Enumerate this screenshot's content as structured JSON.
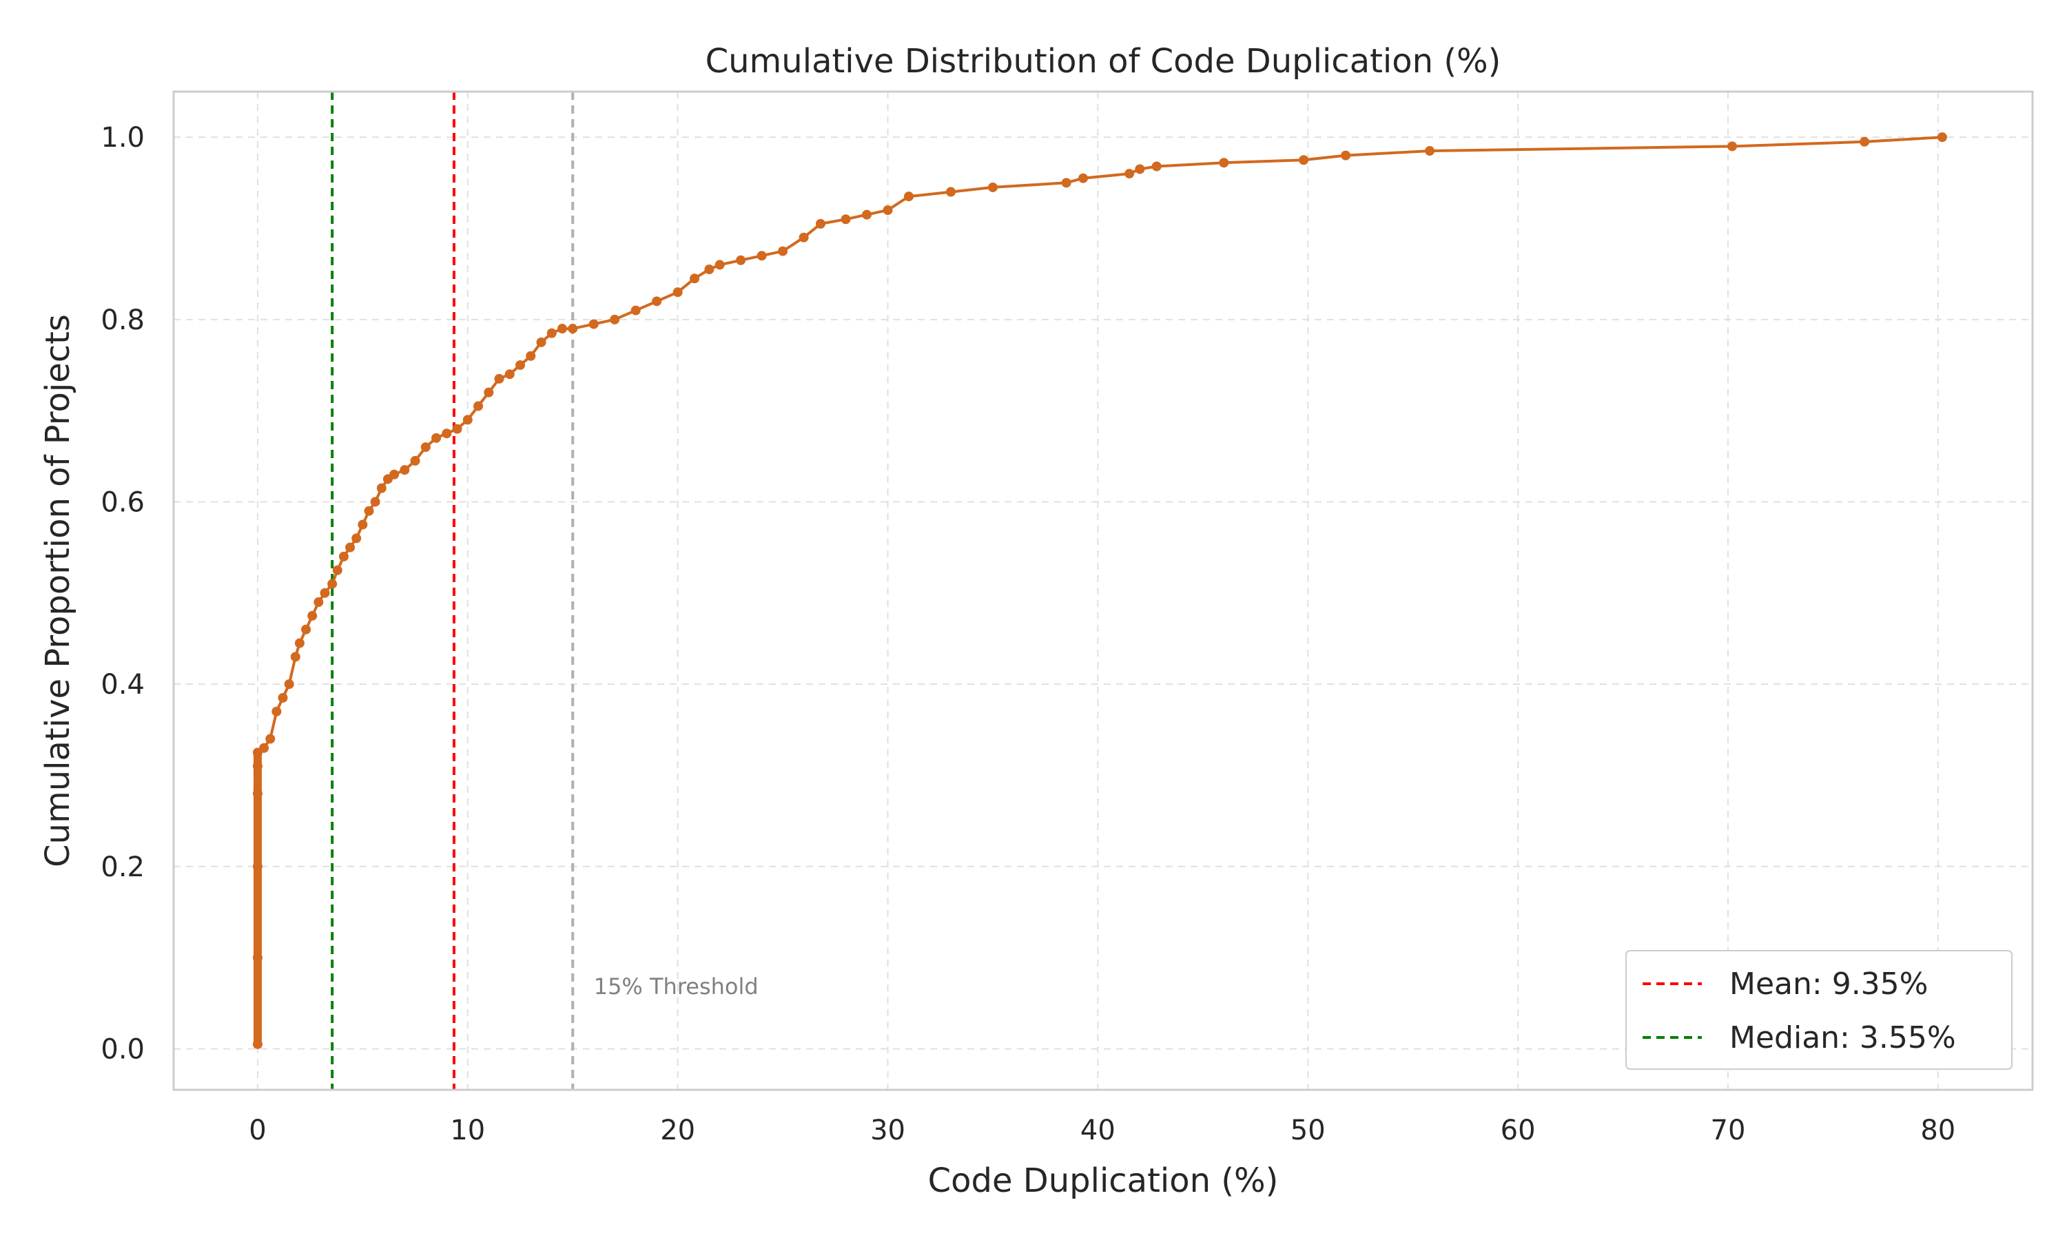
{
  "chart_data": {
    "type": "line",
    "title": "Cumulative Distribution of Code Duplication (%)",
    "xlabel": "Code Duplication (%)",
    "ylabel": "Cumulative Proportion of Projects",
    "xlim": [
      -4,
      84.5
    ],
    "ylim": [
      -0.045,
      1.05
    ],
    "xticks": [
      0,
      10,
      20,
      30,
      40,
      50,
      60,
      70,
      80
    ],
    "yticks": [
      0.0,
      0.2,
      0.4,
      0.6,
      0.8,
      1.0
    ],
    "xtick_labels": [
      "0",
      "10",
      "20",
      "30",
      "40",
      "50",
      "60",
      "70",
      "80"
    ],
    "ytick_labels": [
      "0.0",
      "0.2",
      "0.4",
      "0.6",
      "0.8",
      "1.0"
    ],
    "grid": true,
    "legend_position": "lower-right",
    "colors": {
      "series": "#d2691e",
      "mean": "#ff0000",
      "median": "#008000",
      "threshold": "#b0b0b0",
      "grid": "#e0e0e0",
      "frame": "#cccccc"
    },
    "series": [
      {
        "name": "",
        "x": [
          0,
          0,
          0,
          0,
          0,
          0,
          0.3,
          0.6,
          0.9,
          1.2,
          1.5,
          1.8,
          2.0,
          2.3,
          2.6,
          2.9,
          3.2,
          3.55,
          3.8,
          4.1,
          4.4,
          4.7,
          5.0,
          5.3,
          5.6,
          5.9,
          6.2,
          6.5,
          7.0,
          7.5,
          8.0,
          8.5,
          9.0,
          9.5,
          10.0,
          10.5,
          11.0,
          11.5,
          12.0,
          12.5,
          13.0,
          13.5,
          14.0,
          14.5,
          15.0,
          16.0,
          17.0,
          18.0,
          19.0,
          20.0,
          20.8,
          21.5,
          22.0,
          23.0,
          24.0,
          25.0,
          26.0,
          26.8,
          28.0,
          29.0,
          30.0,
          31.0,
          33.0,
          35.0,
          38.5,
          39.3,
          41.5,
          42.0,
          42.8,
          46.0,
          49.8,
          51.8,
          55.8,
          70.2,
          76.5,
          80.2
        ],
        "y": [
          0.005,
          0.1,
          0.2,
          0.28,
          0.31,
          0.325,
          0.33,
          0.34,
          0.37,
          0.385,
          0.4,
          0.43,
          0.445,
          0.46,
          0.475,
          0.49,
          0.5,
          0.51,
          0.525,
          0.54,
          0.55,
          0.56,
          0.575,
          0.59,
          0.6,
          0.615,
          0.625,
          0.63,
          0.635,
          0.645,
          0.66,
          0.67,
          0.675,
          0.68,
          0.69,
          0.705,
          0.72,
          0.735,
          0.74,
          0.75,
          0.76,
          0.775,
          0.785,
          0.79,
          0.79,
          0.795,
          0.8,
          0.81,
          0.82,
          0.83,
          0.845,
          0.855,
          0.86,
          0.865,
          0.87,
          0.875,
          0.89,
          0.905,
          0.91,
          0.915,
          0.92,
          0.935,
          0.94,
          0.945,
          0.95,
          0.955,
          0.96,
          0.965,
          0.968,
          0.972,
          0.975,
          0.98,
          0.985,
          0.99,
          0.995,
          1.0
        ]
      }
    ],
    "lines": [
      {
        "name": "mean",
        "x": 9.35,
        "label": "Mean: 9.35%"
      },
      {
        "name": "median",
        "x": 3.55,
        "label": "Median: 3.55%"
      },
      {
        "name": "threshold",
        "x": 15,
        "label": "15% Threshold"
      }
    ],
    "annotation": {
      "text": "15% Threshold",
      "x": 16,
      "y": 0.06
    }
  }
}
